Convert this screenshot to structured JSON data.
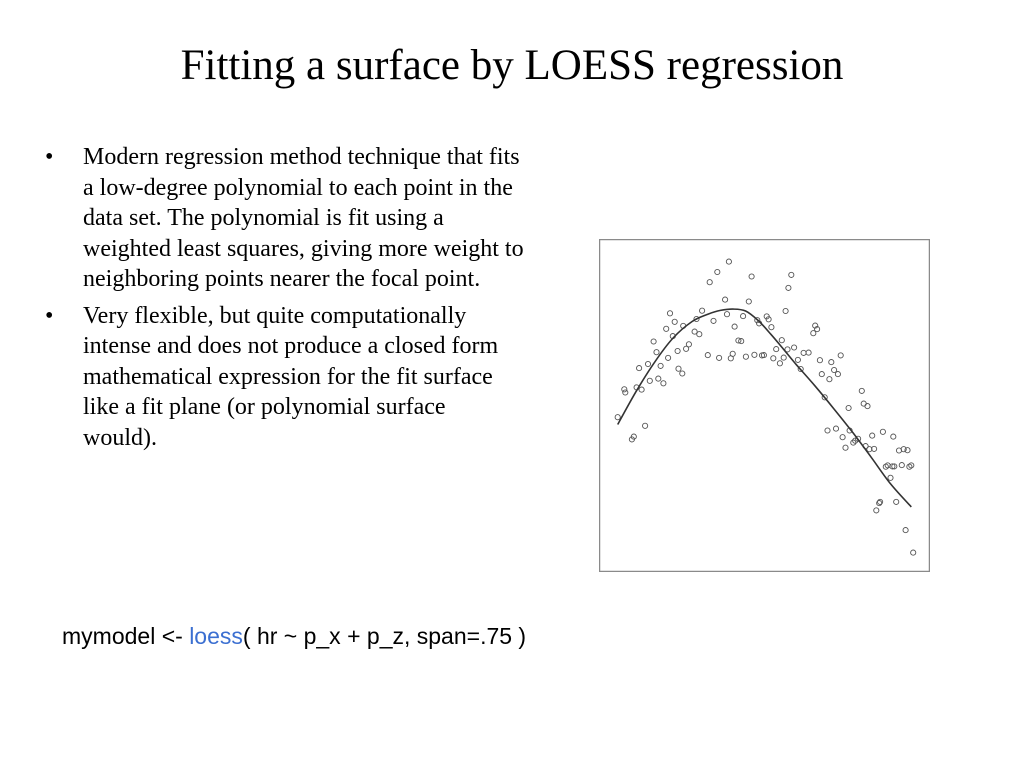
{
  "slide": {
    "title": "Fitting a surface by LOESS regression",
    "bullets": [
      {
        "marker": "•",
        "text": "Modern regression method technique that fits a low-degree polynomial to each point in the data set.  The polynomial is fit using a weighted least squares, giving more weight to neighboring points nearer the focal point."
      },
      {
        "marker": "•",
        "text": "Very flexible, but quite computationally intense and does not produce a closed form mathematical expression for the fit surface like a fit plane (or polynomial surface would)."
      }
    ],
    "code": {
      "before": "mymodel <- ",
      "keyword": "loess",
      "after": "( hr ~ p_x + p_z, span=.75 )",
      "keyword_color": "#3b6fd1"
    }
  },
  "chart_data": {
    "type": "scatter",
    "title": "",
    "xlabel": "",
    "ylabel": "",
    "grid": false,
    "axes_visible": false,
    "xlim": [
      0,
      100
    ],
    "ylim": [
      0,
      100
    ],
    "marker": "open-circle",
    "colors": {
      "points": "#555555",
      "curve": "#333333",
      "frame": "#8a8a8a"
    },
    "points": [
      {
        "x": 3.4,
        "y": 46.3
      },
      {
        "x": 5.5,
        "y": 55.1
      },
      {
        "x": 5.8,
        "y": 54.1
      },
      {
        "x": 7.9,
        "y": 39.3
      },
      {
        "x": 8.5,
        "y": 40.2
      },
      {
        "x": 9.4,
        "y": 55.7
      },
      {
        "x": 10.2,
        "y": 61.8
      },
      {
        "x": 11.0,
        "y": 55.0
      },
      {
        "x": 12.1,
        "y": 43.6
      },
      {
        "x": 13.0,
        "y": 63.1
      },
      {
        "x": 13.6,
        "y": 57.8
      },
      {
        "x": 14.8,
        "y": 70.2
      },
      {
        "x": 15.7,
        "y": 66.8
      },
      {
        "x": 16.3,
        "y": 58.5
      },
      {
        "x": 17.0,
        "y": 62.5
      },
      {
        "x": 17.9,
        "y": 57.0
      },
      {
        "x": 18.8,
        "y": 74.2
      },
      {
        "x": 19.4,
        "y": 65.0
      },
      {
        "x": 20.0,
        "y": 79.1
      },
      {
        "x": 20.9,
        "y": 71.9
      },
      {
        "x": 21.5,
        "y": 76.4
      },
      {
        "x": 22.4,
        "y": 67.2
      },
      {
        "x": 22.7,
        "y": 61.6
      },
      {
        "x": 23.9,
        "y": 60.1
      },
      {
        "x": 24.2,
        "y": 75.1
      },
      {
        "x": 25.1,
        "y": 67.9
      },
      {
        "x": 26.0,
        "y": 69.3
      },
      {
        "x": 27.8,
        "y": 73.3
      },
      {
        "x": 28.4,
        "y": 77.3
      },
      {
        "x": 29.3,
        "y": 72.5
      },
      {
        "x": 30.2,
        "y": 79.9
      },
      {
        "x": 32.0,
        "y": 65.9
      },
      {
        "x": 32.6,
        "y": 88.9
      },
      {
        "x": 33.8,
        "y": 76.7
      },
      {
        "x": 35.0,
        "y": 92.1
      },
      {
        "x": 35.6,
        "y": 65.0
      },
      {
        "x": 37.5,
        "y": 83.4
      },
      {
        "x": 38.1,
        "y": 78.8
      },
      {
        "x": 38.7,
        "y": 95.4
      },
      {
        "x": 39.3,
        "y": 64.9
      },
      {
        "x": 39.9,
        "y": 66.3
      },
      {
        "x": 40.5,
        "y": 74.9
      },
      {
        "x": 41.7,
        "y": 70.5
      },
      {
        "x": 42.6,
        "y": 70.3
      },
      {
        "x": 43.2,
        "y": 78.2
      },
      {
        "x": 44.1,
        "y": 65.4
      },
      {
        "x": 45.0,
        "y": 82.8
      },
      {
        "x": 45.9,
        "y": 90.7
      },
      {
        "x": 46.8,
        "y": 66.0
      },
      {
        "x": 47.7,
        "y": 76.9
      },
      {
        "x": 48.3,
        "y": 75.9
      },
      {
        "x": 49.2,
        "y": 65.8
      },
      {
        "x": 49.8,
        "y": 65.9
      },
      {
        "x": 50.7,
        "y": 78.1
      },
      {
        "x": 51.3,
        "y": 77.2
      },
      {
        "x": 52.2,
        "y": 74.7
      },
      {
        "x": 52.8,
        "y": 64.9
      },
      {
        "x": 53.7,
        "y": 67.8
      },
      {
        "x": 54.9,
        "y": 63.3
      },
      {
        "x": 55.5,
        "y": 70.6
      },
      {
        "x": 56.1,
        "y": 65.1
      },
      {
        "x": 56.7,
        "y": 79.8
      },
      {
        "x": 57.3,
        "y": 67.7
      },
      {
        "x": 57.6,
        "y": 87.1
      },
      {
        "x": 58.5,
        "y": 91.2
      },
      {
        "x": 59.4,
        "y": 68.3
      },
      {
        "x": 60.6,
        "y": 64.4
      },
      {
        "x": 61.5,
        "y": 61.5
      },
      {
        "x": 62.4,
        "y": 66.6
      },
      {
        "x": 64.0,
        "y": 66.7
      },
      {
        "x": 65.5,
        "y": 72.8
      },
      {
        "x": 66.1,
        "y": 75.2
      },
      {
        "x": 66.7,
        "y": 74.1
      },
      {
        "x": 67.6,
        "y": 64.3
      },
      {
        "x": 68.2,
        "y": 59.9
      },
      {
        "x": 69.1,
        "y": 52.6
      },
      {
        "x": 70.0,
        "y": 42.1
      },
      {
        "x": 70.6,
        "y": 58.3
      },
      {
        "x": 71.2,
        "y": 63.7
      },
      {
        "x": 72.1,
        "y": 61.2
      },
      {
        "x": 72.7,
        "y": 42.7
      },
      {
        "x": 73.3,
        "y": 59.9
      },
      {
        "x": 74.2,
        "y": 65.8
      },
      {
        "x": 74.8,
        "y": 40.0
      },
      {
        "x": 75.7,
        "y": 36.7
      },
      {
        "x": 76.7,
        "y": 49.2
      },
      {
        "x": 77.0,
        "y": 42.1
      },
      {
        "x": 78.2,
        "y": 38.3
      },
      {
        "x": 78.8,
        "y": 38.9
      },
      {
        "x": 79.7,
        "y": 39.5
      },
      {
        "x": 80.9,
        "y": 54.6
      },
      {
        "x": 81.5,
        "y": 50.6
      },
      {
        "x": 82.1,
        "y": 37.2
      },
      {
        "x": 82.7,
        "y": 49.8
      },
      {
        "x": 83.3,
        "y": 36.2
      },
      {
        "x": 84.2,
        "y": 40.5
      },
      {
        "x": 84.8,
        "y": 36.3
      },
      {
        "x": 85.5,
        "y": 16.9
      },
      {
        "x": 86.4,
        "y": 19.2
      },
      {
        "x": 86.7,
        "y": 19.6
      },
      {
        "x": 87.6,
        "y": 41.7
      },
      {
        "x": 88.5,
        "y": 30.7
      },
      {
        "x": 89.1,
        "y": 31.1
      },
      {
        "x": 90.0,
        "y": 27.2
      },
      {
        "x": 90.6,
        "y": 30.8
      },
      {
        "x": 90.9,
        "y": 40.2
      },
      {
        "x": 91.2,
        "y": 30.8
      },
      {
        "x": 91.8,
        "y": 19.6
      },
      {
        "x": 92.7,
        "y": 35.8
      },
      {
        "x": 93.6,
        "y": 31.2
      },
      {
        "x": 94.2,
        "y": 36.2
      },
      {
        "x": 94.8,
        "y": 10.7
      },
      {
        "x": 95.4,
        "y": 35.9
      },
      {
        "x": 96.0,
        "y": 30.7
      },
      {
        "x": 96.6,
        "y": 31.1
      },
      {
        "x": 97.2,
        "y": 3.6
      }
    ],
    "fit_curve": [
      {
        "x": 3.4,
        "y": 44.0
      },
      {
        "x": 9.0,
        "y": 54.0
      },
      {
        "x": 15.0,
        "y": 63.5
      },
      {
        "x": 21.0,
        "y": 71.3
      },
      {
        "x": 27.0,
        "y": 76.5
      },
      {
        "x": 32.0,
        "y": 78.8
      },
      {
        "x": 36.0,
        "y": 80.0
      },
      {
        "x": 40.0,
        "y": 80.4
      },
      {
        "x": 44.0,
        "y": 79.8
      },
      {
        "x": 48.0,
        "y": 76.8
      },
      {
        "x": 52.0,
        "y": 72.5
      },
      {
        "x": 56.0,
        "y": 67.8
      },
      {
        "x": 60.0,
        "y": 63.0
      },
      {
        "x": 66.0,
        "y": 56.2
      },
      {
        "x": 72.0,
        "y": 49.0
      },
      {
        "x": 78.0,
        "y": 41.5
      },
      {
        "x": 84.0,
        "y": 33.5
      },
      {
        "x": 90.0,
        "y": 25.3
      },
      {
        "x": 96.6,
        "y": 18.0
      }
    ]
  }
}
